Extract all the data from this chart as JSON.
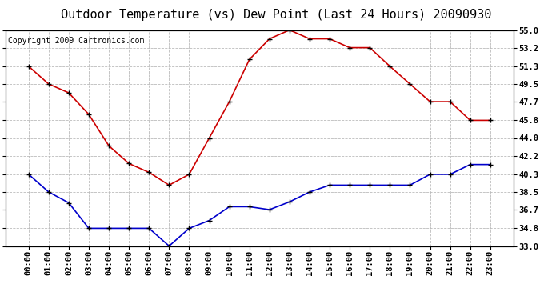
{
  "title": "Outdoor Temperature (vs) Dew Point (Last 24 Hours) 20090930",
  "copyright": "Copyright 2009 Cartronics.com",
  "x_labels": [
    "00:00",
    "01:00",
    "02:00",
    "03:00",
    "04:00",
    "05:00",
    "06:00",
    "07:00",
    "08:00",
    "09:00",
    "10:00",
    "11:00",
    "12:00",
    "13:00",
    "14:00",
    "15:00",
    "16:00",
    "17:00",
    "18:00",
    "19:00",
    "20:00",
    "21:00",
    "22:00",
    "23:00"
  ],
  "temp_data": [
    51.3,
    49.5,
    48.6,
    46.4,
    43.2,
    41.4,
    40.5,
    39.2,
    40.3,
    44.0,
    47.7,
    52.0,
    54.1,
    55.0,
    54.1,
    54.1,
    53.2,
    53.2,
    51.3,
    49.5,
    47.7,
    47.7,
    45.8,
    45.8
  ],
  "dew_data": [
    40.3,
    38.5,
    37.4,
    34.8,
    34.8,
    34.8,
    34.8,
    33.0,
    34.8,
    35.6,
    37.0,
    37.0,
    36.7,
    37.5,
    38.5,
    39.2,
    39.2,
    39.2,
    39.2,
    39.2,
    40.3,
    40.3,
    41.3,
    41.3
  ],
  "y_ticks": [
    33.0,
    34.8,
    36.7,
    38.5,
    40.3,
    42.2,
    44.0,
    45.8,
    47.7,
    49.5,
    51.3,
    53.2,
    55.0
  ],
  "ylim": [
    33.0,
    55.0
  ],
  "temp_color": "#cc0000",
  "dew_color": "#0000cc",
  "bg_color": "#ffffff",
  "grid_color": "#bbbbbb",
  "title_fontsize": 11,
  "copyright_fontsize": 7,
  "tick_fontsize": 7.5
}
